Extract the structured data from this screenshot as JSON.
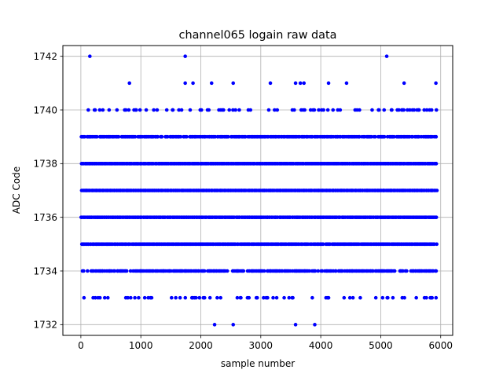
{
  "chart_data": {
    "type": "scatter",
    "title": "channel065 logain raw data",
    "xlabel": "sample number",
    "ylabel": "ADC Code",
    "xlim": [
      -300,
      6200
    ],
    "ylim": [
      1731.6,
      1742.4
    ],
    "xticks": [
      0,
      1000,
      2000,
      3000,
      4000,
      5000,
      6000
    ],
    "yticks": [
      1732,
      1734,
      1736,
      1738,
      1740,
      1742
    ],
    "grid": true,
    "marker_color": "#0000ff",
    "sample_count": 5930,
    "series": [
      {
        "points": [
          {
            "x": 150,
            "y": 1742
          },
          {
            "x": 1740,
            "y": 1742
          },
          {
            "x": 5100,
            "y": 1742
          },
          {
            "x": 810,
            "y": 1741
          },
          {
            "x": 1740,
            "y": 1741
          },
          {
            "x": 1870,
            "y": 1741
          },
          {
            "x": 2180,
            "y": 1741
          },
          {
            "x": 2540,
            "y": 1741
          },
          {
            "x": 3160,
            "y": 1741
          },
          {
            "x": 3580,
            "y": 1741
          },
          {
            "x": 3660,
            "y": 1741
          },
          {
            "x": 3720,
            "y": 1741
          },
          {
            "x": 4130,
            "y": 1741
          },
          {
            "x": 4430,
            "y": 1741
          },
          {
            "x": 5390,
            "y": 1741
          },
          {
            "x": 5920,
            "y": 1741
          },
          {
            "x": 2230,
            "y": 1732
          },
          {
            "x": 2540,
            "y": 1732
          },
          {
            "x": 3580,
            "y": 1732
          },
          {
            "x": 3900,
            "y": 1732
          }
        ]
      }
    ],
    "dense_rows": [
      {
        "y": 1740,
        "density": 0.28
      },
      {
        "y": 1739,
        "density": 0.85
      },
      {
        "y": 1738,
        "density": 1.0
      },
      {
        "y": 1737,
        "density": 1.0
      },
      {
        "y": 1736,
        "density": 1.0
      },
      {
        "y": 1735,
        "density": 0.97
      },
      {
        "y": 1734,
        "density": 0.8
      },
      {
        "y": 1733,
        "density": 0.2
      }
    ]
  }
}
